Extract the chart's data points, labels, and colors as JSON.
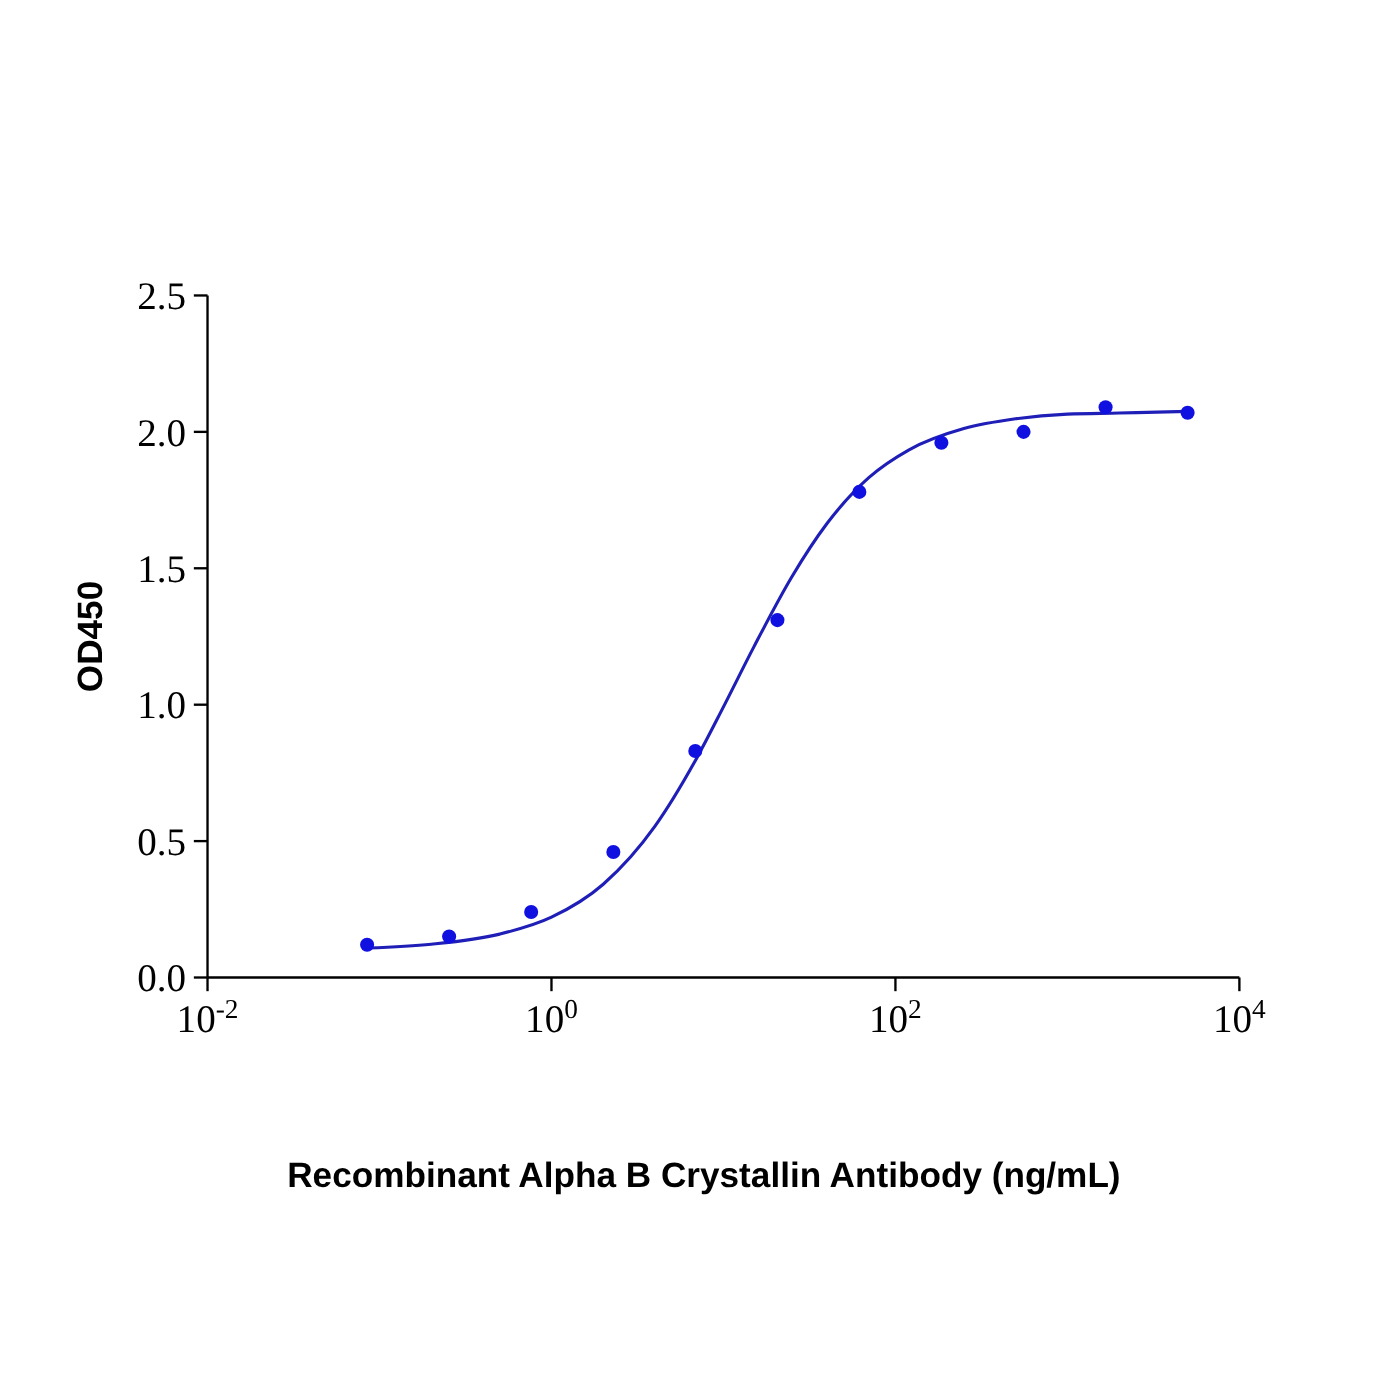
{
  "chart_data": {
    "type": "scatter",
    "xlabel": "Recombinant Alpha B Crystallin Antibody (ng/mL)",
    "ylabel": "OD450",
    "log": "x",
    "marker": "circle",
    "grid": false,
    "xlim": [
      0.01,
      10000
    ],
    "xticks": [
      {
        "value": 0.01,
        "label": "10$^{-2}$"
      },
      {
        "value": 1,
        "label": "10$^{0}$"
      },
      {
        "value": 100,
        "label": "10$^{2}$"
      },
      {
        "value": 10000,
        "label": "10$^{4}$"
      }
    ],
    "ylim": [
      0,
      2.5
    ],
    "yticks": [
      {
        "value": 0,
        "label": "0.0"
      },
      {
        "value": 0.5,
        "label": "0.5"
      },
      {
        "value": 1,
        "label": "1.0"
      },
      {
        "value": 1.5,
        "label": "1.5"
      },
      {
        "value": 2,
        "label": "2.0"
      },
      {
        "value": 2.5,
        "label": "2.5"
      }
    ],
    "series": [
      {
        "type": "line",
        "color": "#1f1fb8",
        "marker": "none",
        "line_style": "solid",
        "x": [
          0.085,
          0.2,
          0.5,
          1,
          2,
          4,
          7,
          10,
          15,
          25,
          40,
          70,
          120,
          250,
          500,
          1000,
          2000,
          5000
        ],
        "values": [
          0.108,
          0.122,
          0.159,
          0.221,
          0.342,
          0.555,
          0.805,
          0.992,
          1.211,
          1.469,
          1.664,
          1.832,
          1.934,
          2.012,
          2.048,
          2.065,
          2.069,
          2.075
        ]
      },
      {
        "color": "#1010e0",
        "x": [
          0.0847,
          0.254,
          0.762,
          2.29,
          6.86,
          20.6,
          61.7,
          185,
          556,
          1667,
          5000
        ],
        "values": [
          0.12,
          0.15,
          0.24,
          0.46,
          0.83,
          1.31,
          1.78,
          1.96,
          2.0,
          2.09,
          2.07
        ]
      }
    ]
  }
}
